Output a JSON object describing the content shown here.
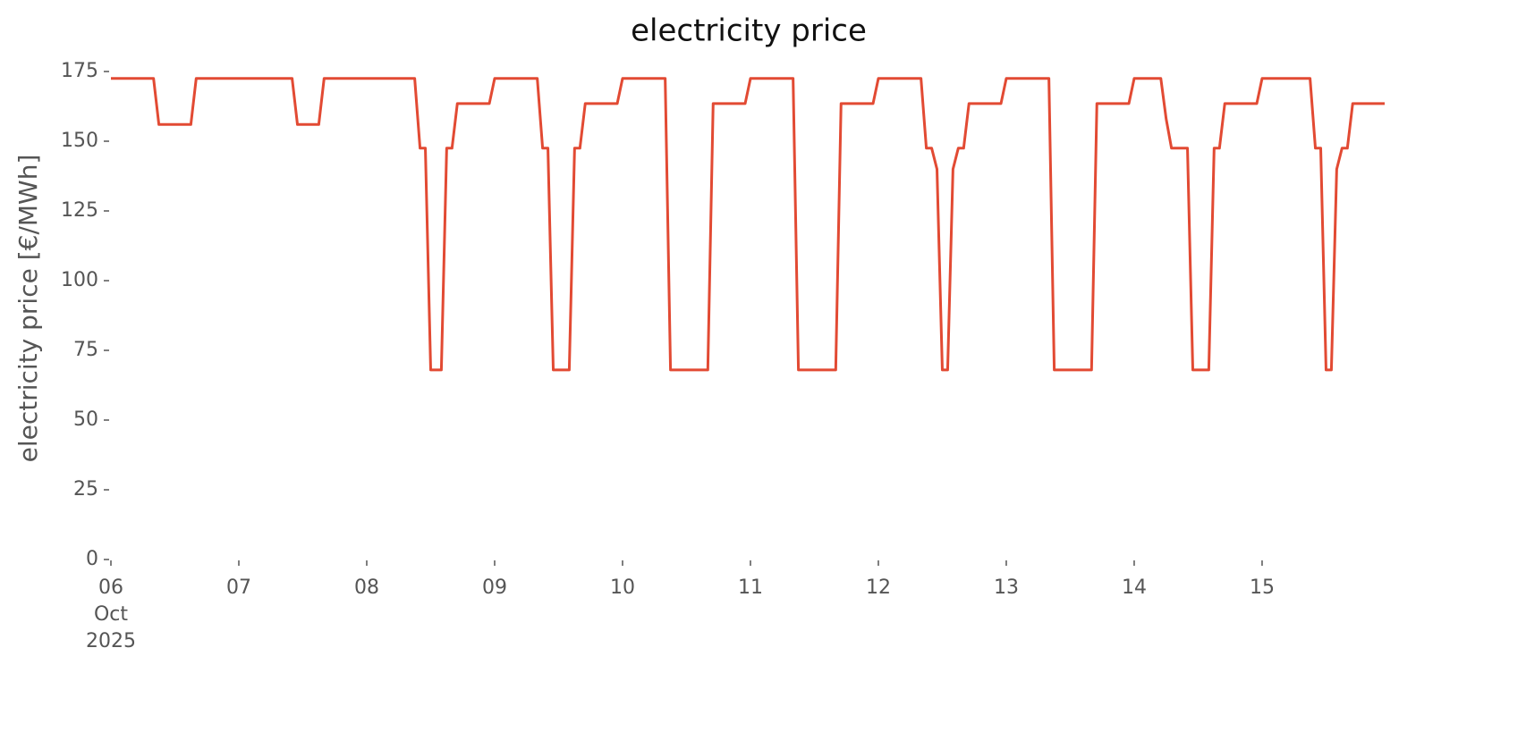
{
  "chart_data": {
    "type": "line",
    "title": "electricity price",
    "ylabel": "electricity price [€/MWh]",
    "x": [
      "2025-10-06 00:00",
      "2025-10-06 01:00",
      "2025-10-06 02:00",
      "2025-10-06 03:00",
      "2025-10-06 04:00",
      "2025-10-06 05:00",
      "2025-10-06 06:00",
      "2025-10-06 07:00",
      "2025-10-06 08:00",
      "2025-10-06 09:00",
      "2025-10-06 10:00",
      "2025-10-06 11:00",
      "2025-10-06 12:00",
      "2025-10-06 13:00",
      "2025-10-06 14:00",
      "2025-10-06 15:00",
      "2025-10-06 16:00",
      "2025-10-06 17:00",
      "2025-10-06 18:00",
      "2025-10-06 19:00",
      "2025-10-06 20:00",
      "2025-10-06 21:00",
      "2025-10-06 22:00",
      "2025-10-06 23:00",
      "2025-10-07 00:00",
      "2025-10-07 01:00",
      "2025-10-07 02:00",
      "2025-10-07 03:00",
      "2025-10-07 04:00",
      "2025-10-07 05:00",
      "2025-10-07 06:00",
      "2025-10-07 07:00",
      "2025-10-07 08:00",
      "2025-10-07 09:00",
      "2025-10-07 10:00",
      "2025-10-07 11:00",
      "2025-10-07 12:00",
      "2025-10-07 13:00",
      "2025-10-07 14:00",
      "2025-10-07 15:00",
      "2025-10-07 16:00",
      "2025-10-07 17:00",
      "2025-10-07 18:00",
      "2025-10-07 19:00",
      "2025-10-07 20:00",
      "2025-10-07 21:00",
      "2025-10-07 22:00",
      "2025-10-07 23:00",
      "2025-10-08 00:00",
      "2025-10-08 01:00",
      "2025-10-08 02:00",
      "2025-10-08 03:00",
      "2025-10-08 04:00",
      "2025-10-08 05:00",
      "2025-10-08 06:00",
      "2025-10-08 07:00",
      "2025-10-08 08:00",
      "2025-10-08 09:00",
      "2025-10-08 10:00",
      "2025-10-08 11:00",
      "2025-10-08 12:00",
      "2025-10-08 13:00",
      "2025-10-08 14:00",
      "2025-10-08 15:00",
      "2025-10-08 16:00",
      "2025-10-08 17:00",
      "2025-10-08 18:00",
      "2025-10-08 19:00",
      "2025-10-08 20:00",
      "2025-10-08 21:00",
      "2025-10-08 22:00",
      "2025-10-08 23:00",
      "2025-10-09 00:00",
      "2025-10-09 01:00",
      "2025-10-09 02:00",
      "2025-10-09 03:00",
      "2025-10-09 04:00",
      "2025-10-09 05:00",
      "2025-10-09 06:00",
      "2025-10-09 07:00",
      "2025-10-09 08:00",
      "2025-10-09 09:00",
      "2025-10-09 10:00",
      "2025-10-09 11:00",
      "2025-10-09 12:00",
      "2025-10-09 13:00",
      "2025-10-09 14:00",
      "2025-10-09 15:00",
      "2025-10-09 16:00",
      "2025-10-09 17:00",
      "2025-10-09 18:00",
      "2025-10-09 19:00",
      "2025-10-09 20:00",
      "2025-10-09 21:00",
      "2025-10-09 22:00",
      "2025-10-09 23:00",
      "2025-10-10 00:00",
      "2025-10-10 01:00",
      "2025-10-10 02:00",
      "2025-10-10 03:00",
      "2025-10-10 04:00",
      "2025-10-10 05:00",
      "2025-10-10 06:00",
      "2025-10-10 07:00",
      "2025-10-10 08:00",
      "2025-10-10 09:00",
      "2025-10-10 10:00",
      "2025-10-10 11:00",
      "2025-10-10 12:00",
      "2025-10-10 13:00",
      "2025-10-10 14:00",
      "2025-10-10 15:00",
      "2025-10-10 16:00",
      "2025-10-10 17:00",
      "2025-10-10 18:00",
      "2025-10-10 19:00",
      "2025-10-10 20:00",
      "2025-10-10 21:00",
      "2025-10-10 22:00",
      "2025-10-10 23:00",
      "2025-10-11 00:00",
      "2025-10-11 01:00",
      "2025-10-11 02:00",
      "2025-10-11 03:00",
      "2025-10-11 04:00",
      "2025-10-11 05:00",
      "2025-10-11 06:00",
      "2025-10-11 07:00",
      "2025-10-11 08:00",
      "2025-10-11 09:00",
      "2025-10-11 10:00",
      "2025-10-11 11:00",
      "2025-10-11 12:00",
      "2025-10-11 13:00",
      "2025-10-11 14:00",
      "2025-10-11 15:00",
      "2025-10-11 16:00",
      "2025-10-11 17:00",
      "2025-10-11 18:00",
      "2025-10-11 19:00",
      "2025-10-11 20:00",
      "2025-10-11 21:00",
      "2025-10-11 22:00",
      "2025-10-11 23:00",
      "2025-10-12 00:00",
      "2025-10-12 01:00",
      "2025-10-12 02:00",
      "2025-10-12 03:00",
      "2025-10-12 04:00",
      "2025-10-12 05:00",
      "2025-10-12 06:00",
      "2025-10-12 07:00",
      "2025-10-12 08:00",
      "2025-10-12 09:00",
      "2025-10-12 10:00",
      "2025-10-12 11:00",
      "2025-10-12 12:00",
      "2025-10-12 13:00",
      "2025-10-12 14:00",
      "2025-10-12 15:00",
      "2025-10-12 16:00",
      "2025-10-12 17:00",
      "2025-10-12 18:00",
      "2025-10-12 19:00",
      "2025-10-12 20:00",
      "2025-10-12 21:00",
      "2025-10-12 22:00",
      "2025-10-12 23:00",
      "2025-10-13 00:00",
      "2025-10-13 01:00",
      "2025-10-13 02:00",
      "2025-10-13 03:00",
      "2025-10-13 04:00",
      "2025-10-13 05:00",
      "2025-10-13 06:00",
      "2025-10-13 07:00",
      "2025-10-13 08:00",
      "2025-10-13 09:00",
      "2025-10-13 10:00",
      "2025-10-13 11:00",
      "2025-10-13 12:00",
      "2025-10-13 13:00",
      "2025-10-13 14:00",
      "2025-10-13 15:00",
      "2025-10-13 16:00",
      "2025-10-13 17:00",
      "2025-10-13 18:00",
      "2025-10-13 19:00",
      "2025-10-13 20:00",
      "2025-10-13 21:00",
      "2025-10-13 22:00",
      "2025-10-13 23:00",
      "2025-10-14 00:00",
      "2025-10-14 01:00",
      "2025-10-14 02:00",
      "2025-10-14 03:00",
      "2025-10-14 04:00",
      "2025-10-14 05:00",
      "2025-10-14 06:00",
      "2025-10-14 07:00",
      "2025-10-14 08:00",
      "2025-10-14 09:00",
      "2025-10-14 10:00",
      "2025-10-14 11:00",
      "2025-10-14 12:00",
      "2025-10-14 13:00",
      "2025-10-14 14:00",
      "2025-10-14 15:00",
      "2025-10-14 16:00",
      "2025-10-14 17:00",
      "2025-10-14 18:00",
      "2025-10-14 19:00",
      "2025-10-14 20:00",
      "2025-10-14 21:00",
      "2025-10-14 22:00",
      "2025-10-14 23:00",
      "2025-10-15 00:00",
      "2025-10-15 01:00",
      "2025-10-15 02:00",
      "2025-10-15 03:00",
      "2025-10-15 04:00",
      "2025-10-15 05:00",
      "2025-10-15 06:00",
      "2025-10-15 07:00",
      "2025-10-15 08:00",
      "2025-10-15 09:00",
      "2025-10-15 10:00",
      "2025-10-15 11:00",
      "2025-10-15 12:00",
      "2025-10-15 13:00",
      "2025-10-15 14:00",
      "2025-10-15 15:00",
      "2025-10-15 16:00",
      "2025-10-15 17:00",
      "2025-10-15 18:00",
      "2025-10-15 19:00",
      "2025-10-15 20:00",
      "2025-10-15 21:00",
      "2025-10-15 22:00",
      "2025-10-15 23:00"
    ],
    "series": [
      {
        "color": "#e24a33",
        "values": [
          172.5,
          172.5,
          172.5,
          172.5,
          172.5,
          172.5,
          172.5,
          172.5,
          172.5,
          156,
          156,
          156,
          156,
          156,
          156,
          156,
          172.5,
          172.5,
          172.5,
          172.5,
          172.5,
          172.5,
          172.5,
          172.5,
          172.5,
          172.5,
          172.5,
          172.5,
          172.5,
          172.5,
          172.5,
          172.5,
          172.5,
          172.5,
          172.5,
          156,
          156,
          156,
          156,
          156,
          172.5,
          172.5,
          172.5,
          172.5,
          172.5,
          172.5,
          172.5,
          172.5,
          172.5,
          172.5,
          172.5,
          172.5,
          172.5,
          172.5,
          172.5,
          172.5,
          172.5,
          172.5,
          147.5,
          147.5,
          68,
          68,
          68,
          147.5,
          147.5,
          163.5,
          163.5,
          163.5,
          163.5,
          163.5,
          163.5,
          163.5,
          172.5,
          172.5,
          172.5,
          172.5,
          172.5,
          172.5,
          172.5,
          172.5,
          172.5,
          147.5,
          147.5,
          68,
          68,
          68,
          68,
          147.5,
          147.5,
          163.5,
          163.5,
          163.5,
          163.5,
          163.5,
          163.5,
          163.5,
          172.5,
          172.5,
          172.5,
          172.5,
          172.5,
          172.5,
          172.5,
          172.5,
          172.5,
          68,
          68,
          68,
          68,
          68,
          68,
          68,
          68,
          163.5,
          163.5,
          163.5,
          163.5,
          163.5,
          163.5,
          163.5,
          172.5,
          172.5,
          172.5,
          172.5,
          172.5,
          172.5,
          172.5,
          172.5,
          172.5,
          68,
          68,
          68,
          68,
          68,
          68,
          68,
          68,
          163.5,
          163.5,
          163.5,
          163.5,
          163.5,
          163.5,
          163.5,
          172.5,
          172.5,
          172.5,
          172.5,
          172.5,
          172.5,
          172.5,
          172.5,
          172.5,
          147.5,
          147.5,
          140,
          68,
          68,
          140,
          147.5,
          147.5,
          163.5,
          163.5,
          163.5,
          163.5,
          163.5,
          163.5,
          163.5,
          172.5,
          172.5,
          172.5,
          172.5,
          172.5,
          172.5,
          172.5,
          172.5,
          172.5,
          68,
          68,
          68,
          68,
          68,
          68,
          68,
          68,
          163.5,
          163.5,
          163.5,
          163.5,
          163.5,
          163.5,
          163.5,
          172.5,
          172.5,
          172.5,
          172.5,
          172.5,
          172.5,
          158,
          147.5,
          147.5,
          147.5,
          147.5,
          68,
          68,
          68,
          68,
          147.5,
          147.5,
          163.5,
          163.5,
          163.5,
          163.5,
          163.5,
          163.5,
          163.5,
          172.5,
          172.5,
          172.5,
          172.5,
          172.5,
          172.5,
          172.5,
          172.5,
          172.5,
          172.5,
          147.5,
          147.5,
          68,
          68,
          140,
          147.5,
          147.5,
          163.5,
          163.5,
          163.5,
          163.5,
          163.5,
          163.5,
          163.5
        ]
      }
    ],
    "xlim": [
      "2025-10-06 00:00",
      "2025-10-15 23:00"
    ],
    "xticks": [
      {
        "value": "2025-10-06 00:00",
        "label": "06\nOct\n2025"
      },
      {
        "value": "2025-10-07 00:00",
        "label": "07"
      },
      {
        "value": "2025-10-08 00:00",
        "label": "08"
      },
      {
        "value": "2025-10-09 00:00",
        "label": "09"
      },
      {
        "value": "2025-10-10 00:00",
        "label": "10"
      },
      {
        "value": "2025-10-11 00:00",
        "label": "11"
      },
      {
        "value": "2025-10-12 00:00",
        "label": "12"
      },
      {
        "value": "2025-10-13 00:00",
        "label": "13"
      },
      {
        "value": "2025-10-14 00:00",
        "label": "14"
      },
      {
        "value": "2025-10-15 00:00",
        "label": "15"
      }
    ],
    "ylim": [
      0,
      175
    ],
    "yticks": [
      0,
      25,
      50,
      75,
      100,
      125,
      150,
      175
    ],
    "grid": false
  }
}
